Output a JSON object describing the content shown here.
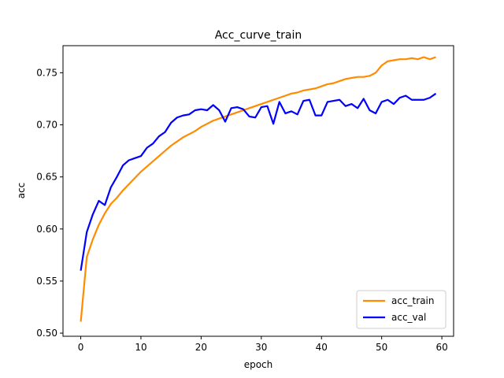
{
  "chart_data": {
    "type": "line",
    "title": "Acc_curve_train",
    "xlabel": "epoch",
    "ylabel": "acc",
    "xlim": [
      -2.95,
      61.95
    ],
    "ylim": [
      0.497,
      0.776
    ],
    "xticks": [
      0,
      10,
      20,
      30,
      40,
      50,
      60
    ],
    "yticks": [
      0.5,
      0.55,
      0.6,
      0.65,
      0.7,
      0.75
    ],
    "ytick_labels": [
      "0.50",
      "0.55",
      "0.60",
      "0.65",
      "0.70",
      "0.75"
    ],
    "grid": false,
    "legend_position": "lower-right",
    "x": [
      0,
      1,
      2,
      3,
      4,
      5,
      6,
      7,
      8,
      9,
      10,
      11,
      12,
      13,
      14,
      15,
      16,
      17,
      18,
      19,
      20,
      21,
      22,
      23,
      24,
      25,
      26,
      27,
      28,
      29,
      30,
      31,
      32,
      33,
      34,
      35,
      36,
      37,
      38,
      39,
      40,
      41,
      42,
      43,
      44,
      45,
      46,
      47,
      48,
      49,
      50,
      51,
      52,
      53,
      54,
      55,
      56,
      57,
      58,
      59
    ],
    "series": [
      {
        "name": "acc_train",
        "color": "#ff8c00",
        "values": [
          0.511,
          0.573,
          0.59,
          0.604,
          0.615,
          0.624,
          0.63,
          0.637,
          0.643,
          0.649,
          0.655,
          0.66,
          0.665,
          0.67,
          0.675,
          0.68,
          0.684,
          0.688,
          0.691,
          0.694,
          0.698,
          0.701,
          0.704,
          0.706,
          0.708,
          0.71,
          0.712,
          0.714,
          0.716,
          0.718,
          0.72,
          0.722,
          0.724,
          0.726,
          0.728,
          0.73,
          0.731,
          0.733,
          0.734,
          0.735,
          0.737,
          0.739,
          0.74,
          0.742,
          0.744,
          0.745,
          0.746,
          0.746,
          0.747,
          0.75,
          0.757,
          0.761,
          0.762,
          0.763,
          0.763,
          0.764,
          0.763,
          0.765,
          0.763,
          0.765
        ]
      },
      {
        "name": "acc_val",
        "color": "#0000ff",
        "values": [
          0.56,
          0.597,
          0.614,
          0.627,
          0.623,
          0.64,
          0.65,
          0.661,
          0.666,
          0.668,
          0.67,
          0.678,
          0.682,
          0.689,
          0.693,
          0.702,
          0.707,
          0.709,
          0.71,
          0.714,
          0.715,
          0.714,
          0.719,
          0.714,
          0.703,
          0.716,
          0.717,
          0.715,
          0.708,
          0.707,
          0.717,
          0.718,
          0.701,
          0.722,
          0.711,
          0.713,
          0.71,
          0.723,
          0.724,
          0.709,
          0.709,
          0.722,
          0.723,
          0.724,
          0.718,
          0.72,
          0.716,
          0.725,
          0.714,
          0.711,
          0.722,
          0.724,
          0.72,
          0.726,
          0.728,
          0.724,
          0.724,
          0.724,
          0.726,
          0.73
        ]
      }
    ]
  }
}
